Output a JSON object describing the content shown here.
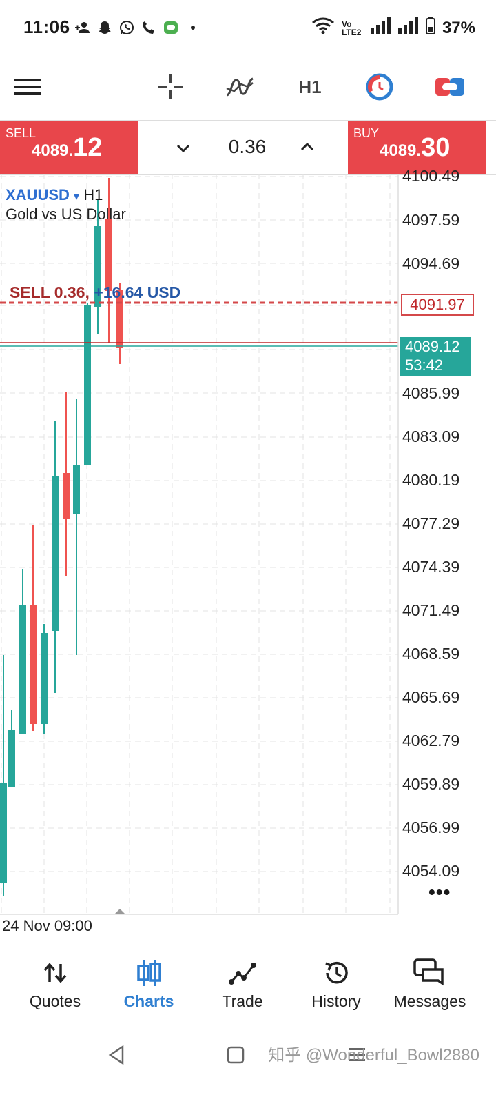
{
  "status_bar": {
    "time": "11:06",
    "network": "Vo LTE2",
    "battery": "37%"
  },
  "toolbar": {
    "timeframe": "H1"
  },
  "trade_bar": {
    "sell": {
      "label": "SELL",
      "price_prefix": "4089.",
      "price_suffix": "12"
    },
    "buy": {
      "label": "BUY",
      "price_prefix": "4089.",
      "price_suffix": "30"
    },
    "lot": "0.36"
  },
  "chart": {
    "symbol": "XAUUSD",
    "dropdown_glyph": "▾",
    "timeframe": "H1",
    "description": "Gold vs US Dollar",
    "position_label": "SELL 0.36,",
    "position_pnl": "+16.64 USD",
    "position_price": "4091.97",
    "bid_price": "4089.12",
    "countdown": "53:42",
    "date_label": "24 Nov 09:00",
    "price_axis": [
      "4100.49",
      "4097.59",
      "4094.69",
      "4085.99",
      "4083.09",
      "4080.19",
      "4077.29",
      "4074.39",
      "4071.49",
      "4068.59",
      "4065.69",
      "4062.79",
      "4059.89",
      "4056.99",
      "4054.09"
    ],
    "more_glyph": "•••",
    "colors": {
      "bull": "#26a69a",
      "bear": "#ef5350",
      "sell_line": "#d4484a"
    }
  },
  "bottom_nav": {
    "items": [
      {
        "label": "Quotes",
        "icon": "quotes-icon"
      },
      {
        "label": "Charts",
        "icon": "charts-icon"
      },
      {
        "label": "Trade",
        "icon": "trade-icon"
      },
      {
        "label": "History",
        "icon": "history-icon"
      },
      {
        "label": "Messages",
        "icon": "messages-icon"
      }
    ]
  },
  "watermark": "知乎 @Wonderful_Bowl2880"
}
